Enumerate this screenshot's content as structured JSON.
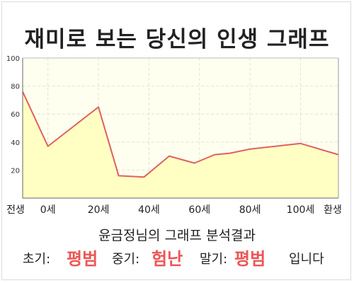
{
  "title": "재미로 보는 당신의 인생 그래프",
  "caption": "윤금정님의 그래프 분석결과",
  "result": {
    "early_label": "초기:",
    "early_value": "평범",
    "middle_label": "중기:",
    "middle_value": "험난",
    "late_label": "말기:",
    "late_value": "평범",
    "suffix": "입니다"
  },
  "chart_data": {
    "type": "area",
    "title": "",
    "xlabel": "",
    "ylabel": "",
    "ylim": [
      0,
      100
    ],
    "yticks": [
      20,
      40,
      60,
      80,
      100
    ],
    "x_tick_labels": [
      {
        "x": -10,
        "label": "전생"
      },
      {
        "x": 0,
        "label": "0세"
      },
      {
        "x": 20,
        "label": "20세"
      },
      {
        "x": 40,
        "label": "40세"
      },
      {
        "x": 60,
        "label": "60세"
      },
      {
        "x": 80,
        "label": "80세"
      },
      {
        "x": 100,
        "label": "100세"
      },
      {
        "x": 115,
        "label": "환생"
      }
    ],
    "xlim": [
      -10,
      115
    ],
    "grid": true,
    "colors": {
      "line": "#e06060",
      "fill": "#ffffc4",
      "background": "#fffff0"
    },
    "series": [
      {
        "x": [
          -10,
          0,
          20,
          28,
          38,
          48,
          58,
          66,
          72,
          80,
          100,
          115
        ],
        "values": [
          76,
          37,
          65,
          16,
          15,
          30,
          25,
          31,
          32,
          35,
          39,
          31
        ]
      }
    ]
  }
}
